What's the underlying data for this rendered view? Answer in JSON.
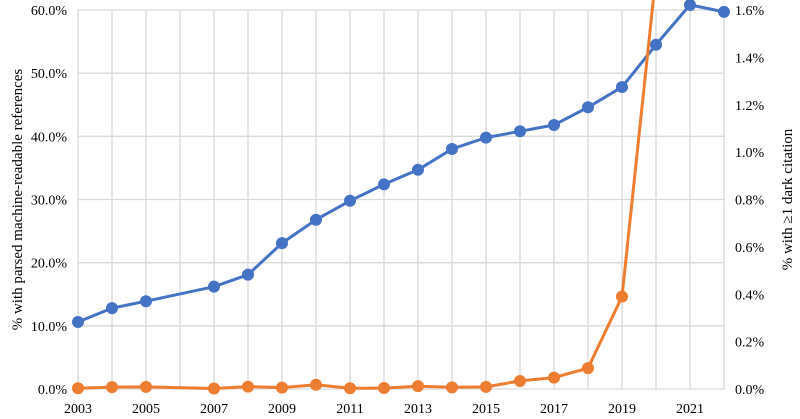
{
  "chart_data": {
    "type": "line",
    "title": "",
    "xlabel": "",
    "ylabel_left": "% with parsed machine-readable references",
    "ylabel_right": "% with ≥1 dark citation",
    "x_ticks": [
      "2003",
      "2005",
      "2007",
      "2009",
      "2011",
      "2013",
      "2015",
      "2017",
      "2019",
      "2021"
    ],
    "y_left_ticks": [
      "0.0%",
      "10.0%",
      "20.0%",
      "30.0%",
      "40.0%",
      "50.0%",
      "60.0%"
    ],
    "y_right_ticks": [
      "0.0%",
      "0.2%",
      "0.4%",
      "0.6%",
      "0.8%",
      "1.0%",
      "1.2%",
      "1.4%",
      "1.6%"
    ],
    "ylim_left": [
      0,
      60
    ],
    "ylim_right": [
      0,
      1.6
    ],
    "xlim": [
      2003,
      2022
    ],
    "grid": true,
    "series": [
      {
        "axis": "left",
        "color": "#4472C4",
        "x": [
          2003,
          2004,
          2005,
          2007,
          2008,
          2009,
          2010,
          2011,
          2012,
          2013,
          2014,
          2015,
          2016,
          2017,
          2018,
          2019,
          2020,
          2021,
          2022
        ],
        "values": [
          10.6,
          12.8,
          13.9,
          16.2,
          18.1,
          23.1,
          26.8,
          29.8,
          32.4,
          34.7,
          38.0,
          39.8,
          40.8,
          41.8,
          44.6,
          47.8,
          54.5,
          60.8,
          59.7
        ]
      },
      {
        "axis": "right",
        "color": "#ED7D31",
        "x": [
          2003,
          2004,
          2005,
          2007,
          2008,
          2009,
          2010,
          2011,
          2012,
          2013,
          2014,
          2015,
          2016,
          2017,
          2018,
          2019,
          2020
        ],
        "values": [
          0.003,
          0.008,
          0.009,
          0.002,
          0.01,
          0.006,
          0.018,
          0.003,
          0.004,
          0.012,
          0.007,
          0.009,
          0.034,
          0.048,
          0.088,
          0.39,
          1.75
        ]
      }
    ]
  }
}
